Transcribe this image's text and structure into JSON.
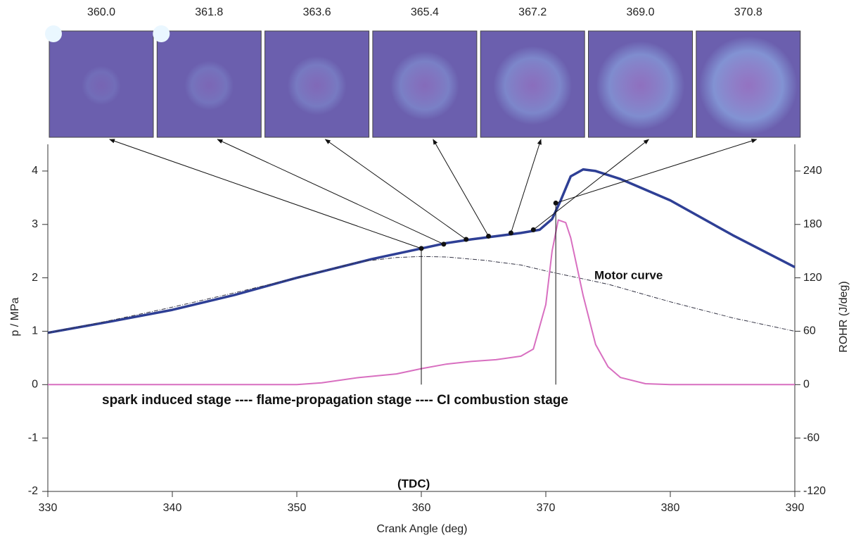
{
  "chart_data": {
    "type": "line",
    "xlabel": "Crank Angle (deg)",
    "ylabel": "p / MPa",
    "y2label": "ROHR (J/deg)",
    "xlim": [
      330,
      390
    ],
    "xticks": [
      330,
      340,
      350,
      360,
      370,
      380,
      390
    ],
    "ylim": [
      -2,
      4.5
    ],
    "yticks": [
      -2,
      -1,
      0,
      1,
      2,
      3,
      4
    ],
    "y2lim": [
      -120,
      270
    ],
    "y2ticks": [
      -120,
      -60,
      0,
      60,
      120,
      180,
      240
    ],
    "annotations": [
      "Motor curve",
      "spark induced stage ---- flame-propagation stage ---- CI combustion stage",
      "(TDC)"
    ],
    "frames": [
      {
        "label": "360.0",
        "x": 360.0,
        "p": 2.55
      },
      {
        "label": "361.8",
        "x": 361.8,
        "p": 2.63
      },
      {
        "label": "363.6",
        "x": 363.6,
        "p": 2.72
      },
      {
        "label": "365.4",
        "x": 365.4,
        "p": 2.78
      },
      {
        "label": "367.2",
        "x": 367.2,
        "p": 2.84
      },
      {
        "label": "369.0",
        "x": 369.0,
        "p": 2.9
      },
      {
        "label": "370.8",
        "x": 370.8,
        "p": 3.4
      }
    ],
    "series": [
      {
        "color": "#2e3f95",
        "width": 3.5,
        "dash": "none",
        "x": [
          330,
          335,
          340,
          345,
          350,
          356,
          360,
          362,
          364,
          366,
          368,
          369.5,
          370.5,
          371.2,
          372,
          373,
          374,
          376,
          380,
          385,
          390
        ],
        "values": [
          0.97,
          1.18,
          1.4,
          1.68,
          2.0,
          2.35,
          2.55,
          2.65,
          2.72,
          2.78,
          2.84,
          2.9,
          3.1,
          3.45,
          3.9,
          4.03,
          4.0,
          3.85,
          3.45,
          2.8,
          2.2
        ]
      },
      {
        "color": "#333344",
        "width": 1,
        "dash": "6 2 1 2",
        "x": [
          330,
          335,
          340,
          345,
          350,
          355,
          358,
          360,
          362,
          365,
          368,
          370,
          375,
          380,
          385,
          390
        ],
        "values": [
          0.97,
          1.2,
          1.45,
          1.72,
          2.0,
          2.3,
          2.38,
          2.4,
          2.39,
          2.33,
          2.24,
          2.13,
          1.88,
          1.55,
          1.25,
          1.0
        ]
      },
      {
        "color": "#d86fc0",
        "width": 2,
        "dash": "none",
        "axis": "y2",
        "x": [
          330,
          350,
          352,
          355,
          358,
          360,
          362,
          364,
          366,
          368,
          369,
          370,
          370.5,
          371,
          371.6,
          372,
          373,
          374,
          375,
          376,
          378,
          380,
          390
        ],
        "values": [
          0,
          0,
          2,
          8,
          12,
          18,
          23,
          26,
          28,
          32,
          40,
          90,
          150,
          185,
          182,
          165,
          100,
          45,
          20,
          8,
          1,
          0,
          0
        ]
      }
    ]
  }
}
